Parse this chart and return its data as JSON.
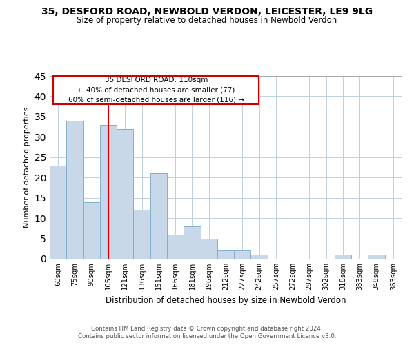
{
  "title": "35, DESFORD ROAD, NEWBOLD VERDON, LEICESTER, LE9 9LG",
  "subtitle": "Size of property relative to detached houses in Newbold Verdon",
  "xlabel": "Distribution of detached houses by size in Newbold Verdon",
  "ylabel": "Number of detached properties",
  "bin_labels": [
    "60sqm",
    "75sqm",
    "90sqm",
    "105sqm",
    "121sqm",
    "136sqm",
    "151sqm",
    "166sqm",
    "181sqm",
    "196sqm",
    "212sqm",
    "227sqm",
    "242sqm",
    "257sqm",
    "272sqm",
    "287sqm",
    "302sqm",
    "318sqm",
    "333sqm",
    "348sqm",
    "363sqm"
  ],
  "bar_values": [
    23,
    34,
    14,
    33,
    32,
    12,
    21,
    6,
    8,
    5,
    2,
    2,
    1,
    0,
    0,
    0,
    0,
    1,
    0,
    1,
    0
  ],
  "bar_color": "#c8d8e8",
  "bar_edge_color": "#7fb0d0",
  "property_line_x": 3.5,
  "property_line_color": "#cc0000",
  "annotation_line1": "35 DESFORD ROAD: 110sqm",
  "annotation_line2": "← 40% of detached houses are smaller (77)",
  "annotation_line3": "60% of semi-detached houses are larger (116) →",
  "ylim": [
    0,
    45
  ],
  "yticks": [
    0,
    5,
    10,
    15,
    20,
    25,
    30,
    35,
    40,
    45
  ],
  "background_color": "#ffffff",
  "grid_color": "#c0d0e0",
  "footer_line1": "Contains HM Land Registry data © Crown copyright and database right 2024.",
  "footer_line2": "Contains public sector information licensed under the Open Government Licence v3.0."
}
